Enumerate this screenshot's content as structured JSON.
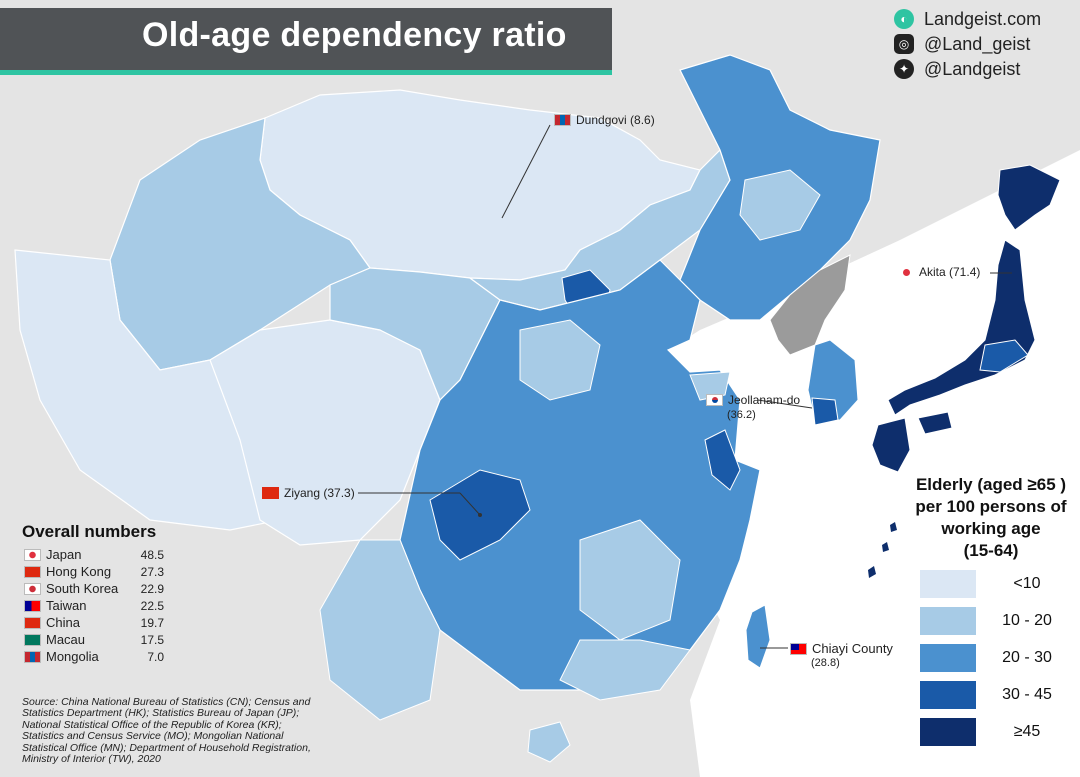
{
  "title": "Old-age dependency ratio",
  "social": [
    {
      "icon": "globe-icon",
      "label": "Landgeist.com"
    },
    {
      "icon": "instagram-icon",
      "label": "@Land_geist"
    },
    {
      "icon": "twitter-icon",
      "label": "@Landgeist"
    }
  ],
  "callouts": {
    "dundgovi": {
      "label": "Dundgovi (8.6)",
      "flag": "mongolia"
    },
    "akita": {
      "label": "Akita (71.4)",
      "flag": "japan"
    },
    "jeollanam_name": "Jeollanam-do",
    "jeollanam_value": "(36.2)",
    "ziyang": {
      "label": "Ziyang (37.3)",
      "flag": "china"
    },
    "chiayi_name": "Chiayi County",
    "chiayi_value": "(28.8)"
  },
  "legend": {
    "title_lines": [
      "Elderly (aged ≥65 )",
      "per 100 persons of",
      "working age",
      "(15-64)"
    ],
    "bins": [
      {
        "label": "<10",
        "color": "#dbe7f4"
      },
      {
        "label": "10 - 20",
        "color": "#a7cbe6"
      },
      {
        "label": "20 - 30",
        "color": "#4b91cf"
      },
      {
        "label": "30 - 45",
        "color": "#1a5aa8"
      },
      {
        "label": "≥45",
        "color": "#0e2e6c"
      }
    ]
  },
  "overall": {
    "title": "Overall numbers",
    "rows": [
      {
        "name": "Japan",
        "value": "48.5",
        "flag": "japan"
      },
      {
        "name": "Hong Kong",
        "value": "27.3",
        "flag": "hongkong"
      },
      {
        "name": "South Korea",
        "value": "22.9",
        "flag": "korea"
      },
      {
        "name": "Taiwan",
        "value": "22.5",
        "flag": "taiwan"
      },
      {
        "name": "China",
        "value": "19.7",
        "flag": "china"
      },
      {
        "name": "Macau",
        "value": "17.5",
        "flag": "macau"
      },
      {
        "name": "Mongolia",
        "value": "7.0",
        "flag": "mongolia"
      }
    ]
  },
  "source": "Source: China National Bureau of Statistics (CN); Census and Statistics Department (HK); Statistics Bureau of Japan (JP); National Statistical Office of the Republic of Korea (KR); Statistics and Census Service (MO); Mongolian National Statistical Office (MN); Department of Household Registration, Ministry of Interior (TW), 2020",
  "colors": {
    "no_data": "#9b9b9b",
    "sea": "#ffffff",
    "land_other": "#e4e4e4",
    "accent": "#2ec4a2"
  }
}
